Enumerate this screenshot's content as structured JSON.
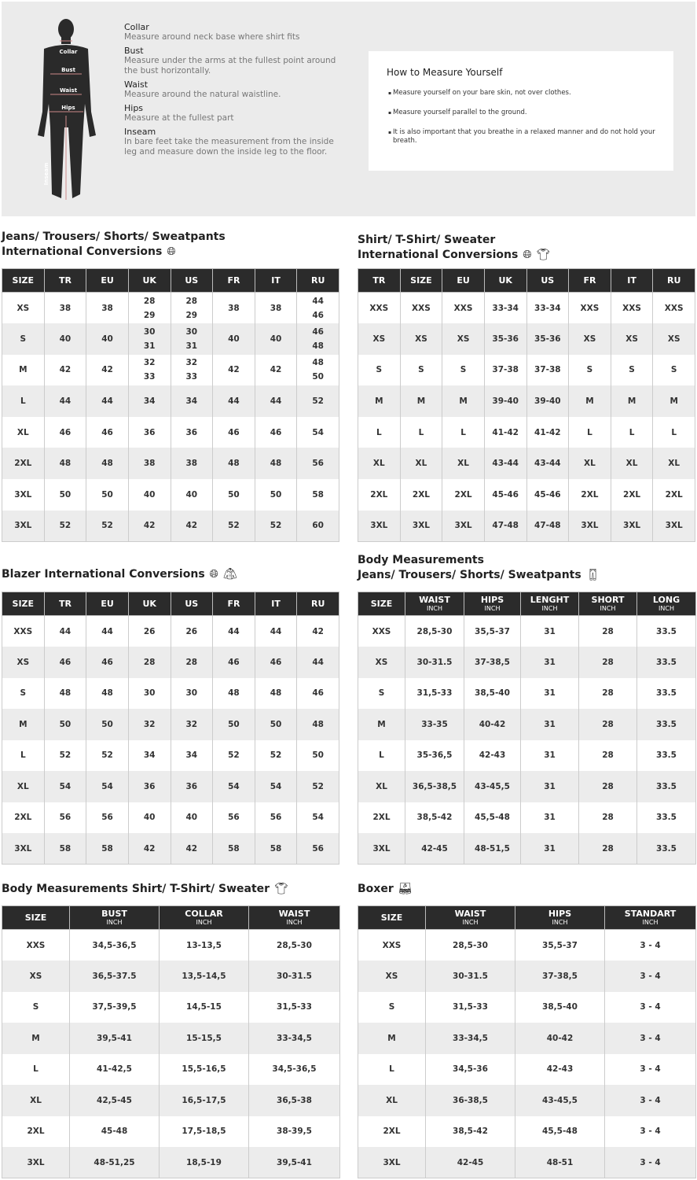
{
  "figure_labels": {
    "collar": "Collar",
    "bust": "Bust",
    "waist": "Waist",
    "hips": "Hips",
    "inseam": "Inseam"
  },
  "definitions": [
    {
      "title": "Collar",
      "desc": "Measure around neck base where shirt fits"
    },
    {
      "title": "Bust",
      "desc": "Measure under the arms at the fullest point around the bust horizontally."
    },
    {
      "title": "Waist",
      "desc": "Measure around the natural waistline."
    },
    {
      "title": "Hips",
      "desc": "Measure at the fullest part"
    },
    {
      "title": "Inseam",
      "desc": "In bare feet take the measurement from the inside leg and measure down the inside leg to the floor."
    }
  ],
  "howto": {
    "title": "How to Measure Yourself",
    "items": [
      "Measure yourself on your bare skin, not over clothes.",
      "Measure yourself parallel to the ground.",
      "It is also important that you breathe in a relaxed manner and do not hold your breath."
    ]
  },
  "tables": [
    {
      "id": "jeans-conv",
      "title": "Jeans/ Trousers/ Shorts/ Sweatpants\nInternational Conversions",
      "icons": [
        "globe-icon"
      ],
      "headers": [
        {
          "label": "SIZE"
        },
        {
          "label": "TR"
        },
        {
          "label": "EU"
        },
        {
          "label": "UK"
        },
        {
          "label": "US"
        },
        {
          "label": "FR"
        },
        {
          "label": "IT"
        },
        {
          "label": "RU"
        }
      ],
      "rows": [
        [
          "XS",
          "38",
          "38",
          "28\n29",
          "28\n29",
          "38",
          "38",
          "44\n46"
        ],
        [
          "S",
          "40",
          "40",
          "30\n31",
          "30\n31",
          "40",
          "40",
          "46\n48"
        ],
        [
          "M",
          "42",
          "42",
          "32\n33",
          "32\n33",
          "42",
          "42",
          "48\n50"
        ],
        [
          "L",
          "44",
          "44",
          "34",
          "34",
          "44",
          "44",
          "52"
        ],
        [
          "XL",
          "46",
          "46",
          "36",
          "36",
          "46",
          "46",
          "54"
        ],
        [
          "2XL",
          "48",
          "48",
          "38",
          "38",
          "48",
          "48",
          "56"
        ],
        [
          "3XL",
          "50",
          "50",
          "40",
          "40",
          "50",
          "50",
          "58"
        ],
        [
          "3XL",
          "52",
          "52",
          "42",
          "42",
          "52",
          "52",
          "60"
        ]
      ]
    },
    {
      "id": "shirt-conv",
      "title": "Shirt/ T-Shirt/ Sweater\nInternational Conversions",
      "icons": [
        "globe-icon",
        "tshirt-icon"
      ],
      "headers": [
        {
          "label": "TR"
        },
        {
          "label": "SIZE"
        },
        {
          "label": "EU"
        },
        {
          "label": "UK"
        },
        {
          "label": "US"
        },
        {
          "label": "FR"
        },
        {
          "label": "IT"
        },
        {
          "label": "RU"
        }
      ],
      "rows": [
        [
          "XXS",
          "XXS",
          "XXS",
          "33-34",
          "33-34",
          "XXS",
          "XXS",
          "XXS"
        ],
        [
          "XS",
          "XS",
          "XS",
          "35-36",
          "35-36",
          "XS",
          "XS",
          "XS"
        ],
        [
          "S",
          "S",
          "S",
          "37-38",
          "37-38",
          "S",
          "S",
          "S"
        ],
        [
          "M",
          "M",
          "M",
          "39-40",
          "39-40",
          "M",
          "M",
          "M"
        ],
        [
          "L",
          "L",
          "L",
          "41-42",
          "41-42",
          "L",
          "L",
          "L"
        ],
        [
          "XL",
          "XL",
          "XL",
          "43-44",
          "43-44",
          "XL",
          "XL",
          "XL"
        ],
        [
          "2XL",
          "2XL",
          "2XL",
          "45-46",
          "45-46",
          "2XL",
          "2XL",
          "2XL"
        ],
        [
          "3XL",
          "3XL",
          "3XL",
          "47-48",
          "47-48",
          "3XL",
          "3XL",
          "3XL"
        ]
      ]
    },
    {
      "id": "blazer-conv",
      "title": "Blazer International Conversions",
      "icons": [
        "globe-icon",
        "blazer-icon"
      ],
      "headers": [
        {
          "label": "SIZE"
        },
        {
          "label": "TR"
        },
        {
          "label": "EU"
        },
        {
          "label": "UK"
        },
        {
          "label": "US"
        },
        {
          "label": "FR"
        },
        {
          "label": "IT"
        },
        {
          "label": "RU"
        }
      ],
      "rows": [
        [
          "XXS",
          "44",
          "44",
          "26",
          "26",
          "44",
          "44",
          "42"
        ],
        [
          "XS",
          "46",
          "46",
          "28",
          "28",
          "46",
          "46",
          "44"
        ],
        [
          "S",
          "48",
          "48",
          "30",
          "30",
          "48",
          "48",
          "46"
        ],
        [
          "M",
          "50",
          "50",
          "32",
          "32",
          "50",
          "50",
          "48"
        ],
        [
          "L",
          "52",
          "52",
          "34",
          "34",
          "52",
          "52",
          "50"
        ],
        [
          "XL",
          "54",
          "54",
          "36",
          "36",
          "54",
          "54",
          "52"
        ],
        [
          "2XL",
          "56",
          "56",
          "40",
          "40",
          "56",
          "56",
          "54"
        ],
        [
          "3XL",
          "58",
          "58",
          "42",
          "42",
          "58",
          "58",
          "56"
        ]
      ]
    },
    {
      "id": "jeans-body",
      "title": "Body Measurements\nJeans/ Trousers/ Shorts/ Sweatpants",
      "icons": [
        "trousers-icon"
      ],
      "headers": [
        {
          "label": "SIZE"
        },
        {
          "label": "WAIST",
          "unit": "INCH"
        },
        {
          "label": "HIPS",
          "unit": "INCH"
        },
        {
          "label": "LENGHT",
          "unit": "INCH"
        },
        {
          "label": "SHORT",
          "unit": "INCH"
        },
        {
          "label": "LONG",
          "unit": "INCH"
        }
      ],
      "rows": [
        [
          "XXS",
          "28,5-30",
          "35,5-37",
          "31",
          "28",
          "33.5"
        ],
        [
          "XS",
          "30-31.5",
          "37-38,5",
          "31",
          "28",
          "33.5"
        ],
        [
          "S",
          "31,5-33",
          "38,5-40",
          "31",
          "28",
          "33.5"
        ],
        [
          "M",
          "33-35",
          "40-42",
          "31",
          "28",
          "33.5"
        ],
        [
          "L",
          "35-36,5",
          "42-43",
          "31",
          "28",
          "33.5"
        ],
        [
          "XL",
          "36,5-38,5",
          "43-45,5",
          "31",
          "28",
          "33.5"
        ],
        [
          "2XL",
          "38,5-42",
          "45,5-48",
          "31",
          "28",
          "33.5"
        ],
        [
          "3XL",
          "42-45",
          "48-51,5",
          "31",
          "28",
          "33.5"
        ]
      ]
    },
    {
      "id": "shirt-body",
      "title": "Body Measurements Shirt/ T-Shirt/ Sweater",
      "icons": [
        "tshirt-icon"
      ],
      "headers": [
        {
          "label": "SIZE"
        },
        {
          "label": "BUST",
          "unit": "INCH"
        },
        {
          "label": "COLLAR",
          "unit": "INCH"
        },
        {
          "label": "WAIST",
          "unit": "INCH"
        }
      ],
      "rows": [
        [
          "XXS",
          "34,5-36,5",
          "13-13,5",
          "28,5-30"
        ],
        [
          "XS",
          "36,5-37.5",
          "13,5-14,5",
          "30-31.5"
        ],
        [
          "S",
          "37,5-39,5",
          "14,5-15",
          "31,5-33"
        ],
        [
          "M",
          "39,5-41",
          "15-15,5",
          "33-34,5"
        ],
        [
          "L",
          "41-42,5",
          "15,5-16,5",
          "34,5-36,5"
        ],
        [
          "XL",
          "42,5-45",
          "16,5-17,5",
          "36,5-38"
        ],
        [
          "2XL",
          "45-48",
          "17,5-18,5",
          "38-39,5"
        ],
        [
          "3XL",
          "48-51,25",
          "18,5-19",
          "39,5-41"
        ]
      ]
    },
    {
      "id": "boxer",
      "title": "Boxer",
      "icons": [
        "boxer-icon"
      ],
      "headers": [
        {
          "label": "SIZE"
        },
        {
          "label": "WAIST",
          "unit": "INCH"
        },
        {
          "label": "HIPS",
          "unit": "INCH"
        },
        {
          "label": "STANDART",
          "unit": "INCH"
        }
      ],
      "rows": [
        [
          "XXS",
          "28,5-30",
          "35,5-37",
          "3 - 4"
        ],
        [
          "XS",
          "30-31.5",
          "37-38,5",
          "3 - 4"
        ],
        [
          "S",
          "31,5-33",
          "38,5-40",
          "3 - 4"
        ],
        [
          "M",
          "33-34,5",
          "40-42",
          "3 - 4"
        ],
        [
          "L",
          "34,5-36",
          "42-43",
          "3 - 4"
        ],
        [
          "XL",
          "36-38,5",
          "43-45,5",
          "3 - 4"
        ],
        [
          "2XL",
          "38,5-42",
          "45,5-48",
          "3 - 4"
        ],
        [
          "3XL",
          "42-45",
          "48-51",
          "3 - 4"
        ]
      ]
    }
  ]
}
